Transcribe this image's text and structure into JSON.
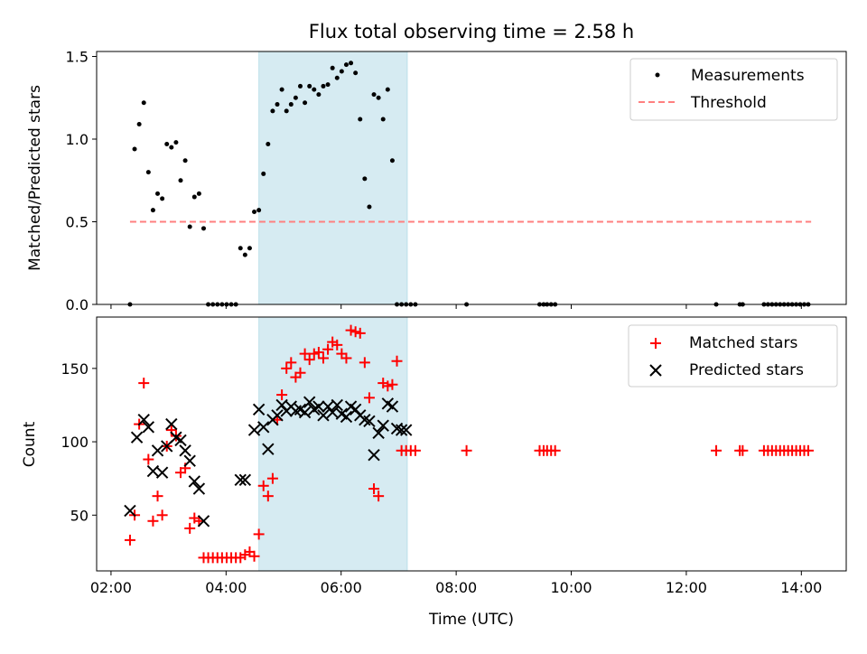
{
  "chart_data": [
    {
      "type": "scatter",
      "title": "Flux total observing time = 2.58 h",
      "xlabel": "",
      "ylabel": "Matched/Predicted stars",
      "xlim": [
        1.75,
        14.78
      ],
      "ylim": [
        0,
        1.53
      ],
      "yticks": [
        0.0,
        0.5,
        1.0,
        1.5
      ],
      "ytick_labels": [
        "0.0",
        "0.5",
        "1.0",
        "1.5"
      ],
      "legend_position": "top-right",
      "shaded_region": {
        "x": [
          4.57,
          7.15
        ],
        "color": "#add8e6"
      },
      "series": [
        {
          "name": "Measurements",
          "marker": "dot",
          "color": "#000000",
          "x": [
            2.33,
            2.41,
            2.49,
            2.57,
            2.65,
            2.73,
            2.81,
            2.89,
            2.97,
            3.05,
            3.13,
            3.21,
            3.29,
            3.37,
            3.45,
            3.53,
            3.61,
            3.69,
            3.77,
            3.85,
            3.93,
            4.01,
            4.09,
            4.17,
            4.25,
            4.33,
            4.41,
            4.49,
            4.57,
            4.65,
            4.73,
            4.81,
            4.89,
            4.97,
            5.05,
            5.13,
            5.21,
            5.29,
            5.37,
            5.45,
            5.53,
            5.61,
            5.69,
            5.77,
            5.85,
            5.93,
            6.01,
            6.09,
            6.17,
            6.25,
            6.33,
            6.41,
            6.49,
            6.57,
            6.65,
            6.73,
            6.81,
            6.89,
            6.97,
            7.05,
            7.13,
            7.21,
            7.29,
            8.18,
            9.45,
            9.52,
            9.58,
            9.65,
            9.72,
            12.52,
            12.93,
            12.98,
            13.35,
            13.42,
            13.49,
            13.56,
            13.63,
            13.7,
            13.77,
            13.84,
            13.91,
            13.98,
            14.05,
            14.12
          ],
          "y": [
            0.0,
            0.94,
            1.09,
            1.22,
            0.8,
            0.57,
            0.67,
            0.64,
            0.97,
            0.95,
            0.98,
            0.75,
            0.87,
            0.47,
            0.65,
            0.67,
            0.46,
            0.0,
            0.0,
            0.0,
            0.0,
            0.0,
            0.0,
            0.0,
            0.34,
            0.3,
            0.34,
            0.56,
            0.57,
            0.79,
            0.97,
            1.17,
            1.21,
            1.3,
            1.17,
            1.21,
            1.25,
            1.32,
            1.22,
            1.32,
            1.3,
            1.27,
            1.32,
            1.33,
            1.43,
            1.37,
            1.41,
            1.45,
            1.46,
            1.4,
            1.12,
            0.76,
            0.59,
            1.27,
            1.25,
            1.12,
            1.3,
            0.87,
            0.0,
            0.0,
            0.0,
            0.0,
            0.0,
            0.0,
            0.0,
            0.0,
            0.0,
            0.0,
            0.0,
            0.0,
            0.0,
            0.0,
            0.0,
            0.0,
            0.0,
            0.0,
            0.0,
            0.0,
            0.0,
            0.0,
            0.0,
            0.0,
            0.0,
            0.0
          ]
        },
        {
          "name": "Threshold",
          "marker": "dashed-line",
          "color": "#ff7f7f",
          "x": [
            2.33,
            14.17
          ],
          "y": [
            0.5,
            0.5
          ]
        }
      ]
    },
    {
      "type": "scatter",
      "title": "",
      "xlabel": "Time (UTC)",
      "ylabel": "Count",
      "xlim": [
        1.75,
        14.78
      ],
      "ylim": [
        12,
        185
      ],
      "yticks": [
        50,
        100,
        150
      ],
      "ytick_labels": [
        "50",
        "100",
        "150"
      ],
      "xticks": [
        2,
        4,
        6,
        8,
        10,
        12,
        14
      ],
      "xtick_labels": [
        "02:00",
        "04:00",
        "06:00",
        "08:00",
        "10:00",
        "12:00",
        "14:00"
      ],
      "legend_position": "top-right",
      "shaded_region": {
        "x": [
          4.57,
          7.15
        ],
        "color": "#add8e6"
      },
      "series": [
        {
          "name": "Matched stars",
          "marker": "plus",
          "color": "#ff0000",
          "x": [
            2.33,
            2.41,
            2.49,
            2.57,
            2.65,
            2.73,
            2.81,
            2.89,
            2.97,
            3.05,
            3.13,
            3.21,
            3.29,
            3.37,
            3.45,
            3.53,
            3.61,
            3.69,
            3.77,
            3.85,
            3.93,
            4.01,
            4.09,
            4.17,
            4.25,
            4.33,
            4.41,
            4.49,
            4.57,
            4.65,
            4.73,
            4.81,
            4.89,
            4.97,
            5.05,
            5.13,
            5.21,
            5.29,
            5.37,
            5.45,
            5.53,
            5.61,
            5.69,
            5.77,
            5.85,
            5.93,
            6.01,
            6.09,
            6.17,
            6.25,
            6.33,
            6.41,
            6.49,
            6.57,
            6.65,
            6.73,
            6.81,
            6.89,
            6.97,
            7.05,
            7.13,
            7.21,
            7.29,
            8.18,
            9.45,
            9.52,
            9.58,
            9.65,
            9.72,
            12.52,
            12.93,
            12.98,
            13.35,
            13.42,
            13.49,
            13.56,
            13.63,
            13.7,
            13.77,
            13.84,
            13.91,
            13.98,
            14.05,
            14.12
          ],
          "y": [
            33,
            50,
            112,
            140,
            88,
            46,
            63,
            50,
            97,
            108,
            104,
            79,
            82,
            41,
            48,
            46,
            21,
            21,
            21,
            21,
            21,
            21,
            21,
            21,
            21,
            23,
            25,
            22,
            37,
            70,
            63,
            75,
            115,
            132,
            150,
            154,
            144,
            147,
            160,
            156,
            160,
            161,
            157,
            163,
            168,
            166,
            160,
            157,
            176,
            175,
            174,
            154,
            130,
            68,
            63,
            140,
            138,
            139,
            155,
            94,
            94,
            94,
            94,
            94,
            94,
            94,
            94,
            94,
            94,
            94,
            94,
            94,
            94,
            94,
            94,
            94,
            94,
            94,
            94,
            94,
            94,
            94,
            94,
            94
          ]
        },
        {
          "name": "Predicted stars",
          "marker": "x",
          "color": "#000000",
          "x": [
            2.33,
            2.45,
            2.57,
            2.65,
            2.73,
            2.81,
            2.89,
            2.97,
            3.05,
            3.13,
            3.21,
            3.29,
            3.37,
            3.45,
            3.53,
            3.61,
            4.25,
            4.33,
            4.49,
            4.57,
            4.65,
            4.73,
            4.81,
            4.89,
            4.97,
            5.05,
            5.13,
            5.21,
            5.29,
            5.37,
            5.45,
            5.53,
            5.61,
            5.69,
            5.77,
            5.85,
            5.93,
            6.01,
            6.09,
            6.17,
            6.25,
            6.33,
            6.41,
            6.49,
            6.57,
            6.65,
            6.73,
            6.81,
            6.89,
            6.97,
            7.05,
            7.13
          ],
          "y": [
            53,
            103,
            115,
            110,
            80,
            94,
            79,
            97,
            112,
            103,
            101,
            94,
            87,
            73,
            68,
            46,
            74,
            74,
            108,
            122,
            110,
            95,
            115,
            118,
            125,
            121,
            124,
            121,
            122,
            120,
            127,
            122,
            124,
            118,
            124,
            120,
            125,
            119,
            117,
            124,
            122,
            118,
            115,
            114,
            91,
            106,
            111,
            126,
            124,
            109,
            108,
            108
          ]
        }
      ]
    }
  ]
}
